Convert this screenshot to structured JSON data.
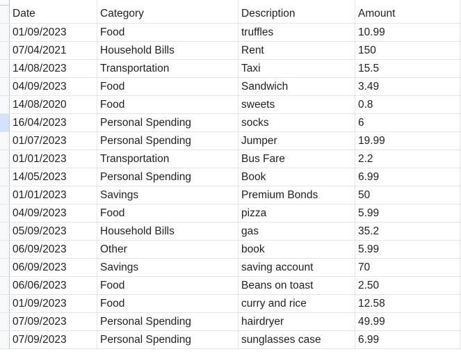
{
  "headers": {
    "date": "Date",
    "category": "Category",
    "description": "Description",
    "amount": "Amount"
  },
  "rows": [
    {
      "date": "01/09/2023",
      "category": "Food",
      "description": "truffles",
      "amount": "10.99"
    },
    {
      "date": "07/04/2021",
      "category": "Household Bills",
      "description": "Rent",
      "amount": "150"
    },
    {
      "date": "14/08/2023",
      "category": "Transportation",
      "description": "Taxi",
      "amount": "15.5"
    },
    {
      "date": "04/09/2023",
      "category": "Food",
      "description": "Sandwich",
      "amount": "3.49"
    },
    {
      "date": "14/08/2020",
      "category": "Food",
      "description": "sweets",
      "amount": "0.8"
    },
    {
      "date": "16/04/2023",
      "category": "Personal Spending",
      "description": "socks",
      "amount": "6"
    },
    {
      "date": "01/07/2023",
      "category": "Personal Spending",
      "description": "Jumper",
      "amount": "19.99"
    },
    {
      "date": "01/01/2023",
      "category": "Transportation",
      "description": "Bus Fare",
      "amount": "2.2"
    },
    {
      "date": "14/05/2023",
      "category": "Personal Spending",
      "description": "Book",
      "amount": "6.99"
    },
    {
      "date": "01/01/2023",
      "category": "Savings",
      "description": "Premium Bonds",
      "amount": "50"
    },
    {
      "date": "04/09/2023",
      "category": "Food",
      "description": "pizza",
      "amount": "5.99"
    },
    {
      "date": "05/09/2023",
      "category": "Household Bills",
      "description": "gas",
      "amount": "35.2"
    },
    {
      "date": "06/09/2023",
      "category": "Other",
      "description": "book",
      "amount": "5.99"
    },
    {
      "date": "06/09/2023",
      "category": "Savings",
      "description": "saving account",
      "amount": "70"
    },
    {
      "date": "06/06/2023",
      "category": "Food",
      "description": "Beans on toast",
      "amount": "2.50"
    },
    {
      "date": "01/09/2023",
      "category": "Food",
      "description": "curry and rice",
      "amount": "12.58"
    },
    {
      "date": "07/09/2023",
      "category": "Personal Spending",
      "description": "hairdryer",
      "amount": "49.99"
    },
    {
      "date": "07/09/2023",
      "category": "Personal Spending",
      "description": "sunglasses case",
      "amount": "6.99"
    }
  ],
  "highlighted_row_index": 5,
  "colors": {
    "gridline": "#e2e3e3",
    "gutter": "#f8f9fa",
    "gutter_highlight": "#d3e3fd",
    "text": "#1f1f1f"
  }
}
